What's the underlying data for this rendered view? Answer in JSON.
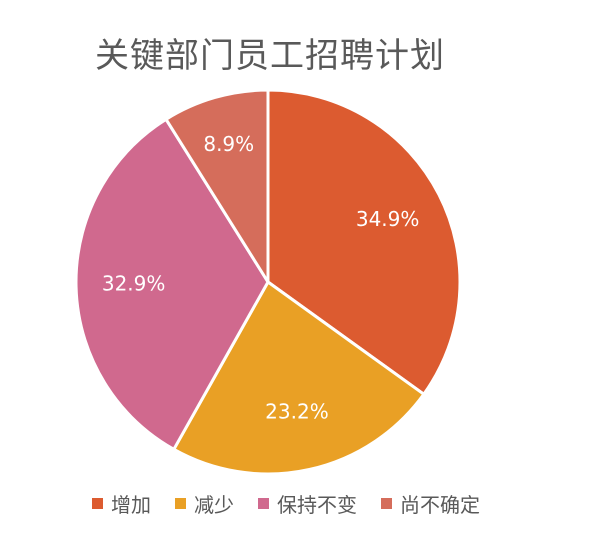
{
  "chart_data": {
    "type": "pie",
    "title": "关键部门员工招聘计划",
    "categories": [
      "增加",
      "减少",
      "保持不变",
      "尚不确定"
    ],
    "values": [
      34.9,
      23.2,
      32.9,
      8.9
    ],
    "labels": [
      "34.9%",
      "23.2%",
      "32.9%",
      "8.9%"
    ],
    "colors": [
      "#DC5B30",
      "#E9A025",
      "#D0698E",
      "#D56D5B"
    ],
    "legend_position": "bottom",
    "start_angle_deg": 0,
    "direction": "clockwise"
  }
}
